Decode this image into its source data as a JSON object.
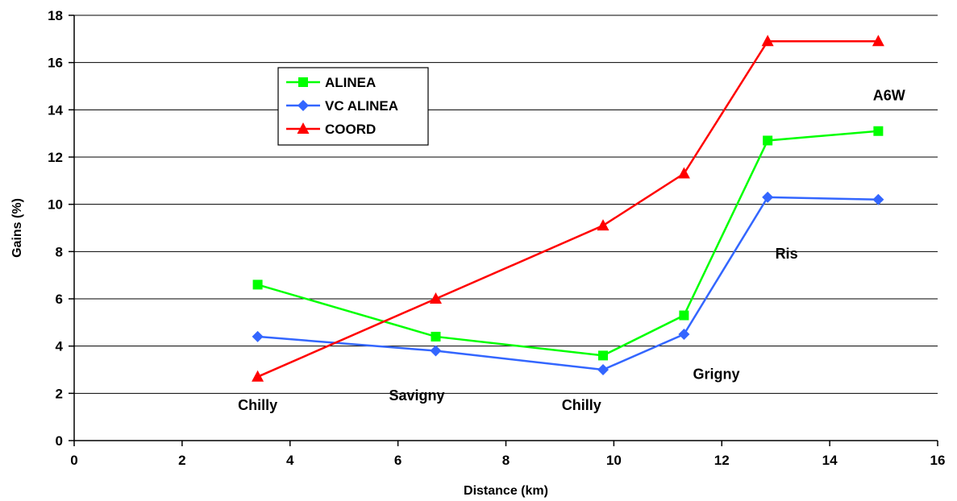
{
  "chart_data": {
    "type": "line",
    "title": "",
    "xlabel": "Distance (km)",
    "ylabel": "Gains (%)",
    "xlim": [
      0,
      16
    ],
    "ylim": [
      0,
      18
    ],
    "xticks": [
      0,
      2,
      4,
      6,
      8,
      10,
      12,
      14,
      16
    ],
    "yticks": [
      0,
      2,
      4,
      6,
      8,
      10,
      12,
      14,
      16,
      18
    ],
    "grid": "horizontal",
    "legend_position": "top-left",
    "series": [
      {
        "name": "ALINEA",
        "color": "#00ff00",
        "marker": "square",
        "x": [
          3.4,
          6.7,
          9.8,
          11.3,
          12.85,
          14.9
        ],
        "y": [
          6.6,
          4.4,
          3.6,
          5.3,
          12.7,
          13.1
        ]
      },
      {
        "name": "VC ALINEA",
        "color": "#3366ff",
        "marker": "diamond",
        "x": [
          3.4,
          6.7,
          9.8,
          11.3,
          12.85,
          14.9
        ],
        "y": [
          4.4,
          3.8,
          3.0,
          4.5,
          10.3,
          10.2
        ]
      },
      {
        "name": "COORD",
        "color": "#ff0000",
        "marker": "triangle",
        "x": [
          3.4,
          6.7,
          9.8,
          11.3,
          12.85,
          14.9
        ],
        "y": [
          2.7,
          6.0,
          9.1,
          11.3,
          16.9,
          16.9
        ]
      }
    ],
    "annotations": [
      {
        "text": "Chilly",
        "x": 3.4,
        "y": 1.3
      },
      {
        "text": "Savigny",
        "x": 6.35,
        "y": 1.7
      },
      {
        "text": "Chilly",
        "x": 9.4,
        "y": 1.3
      },
      {
        "text": "Grigny",
        "x": 11.9,
        "y": 2.6
      },
      {
        "text": "Ris",
        "x": 13.2,
        "y": 7.7
      },
      {
        "text": "A6W",
        "x": 15.1,
        "y": 14.4
      }
    ]
  }
}
